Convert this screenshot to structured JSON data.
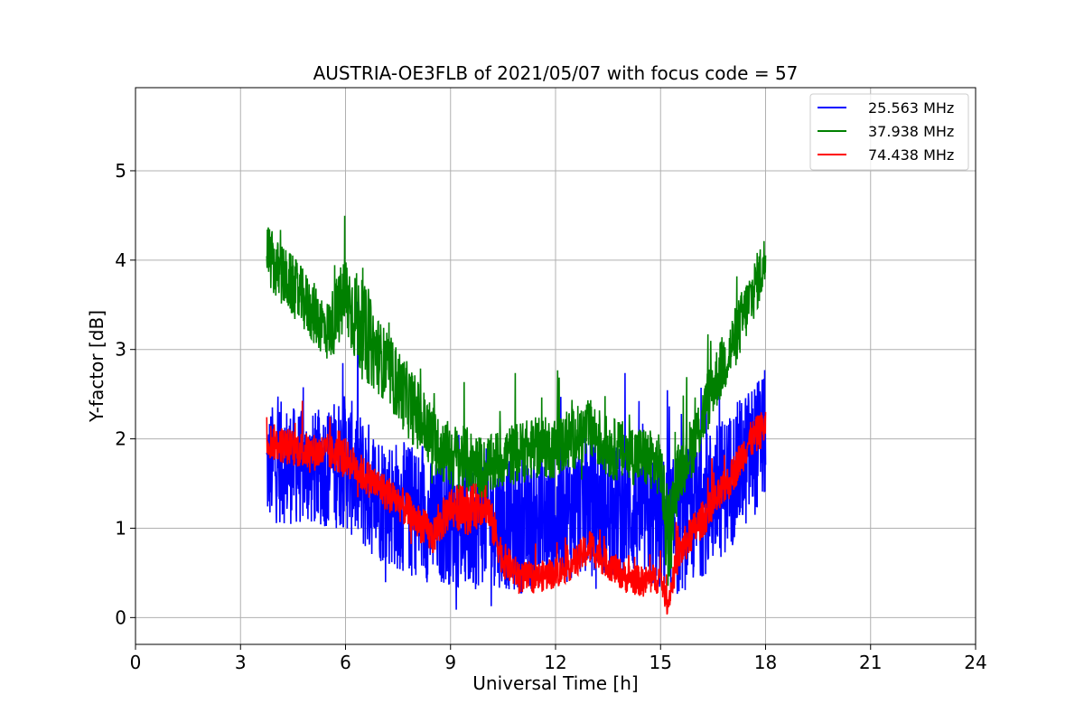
{
  "chart_data": {
    "type": "line",
    "title": "AUSTRIA-OE3FLB of 2021/05/07 with focus code = 57",
    "xlabel": "Universal Time [h]",
    "ylabel": "Y-factor [dB]",
    "xlim": [
      0,
      24
    ],
    "ylim": [
      -0.3,
      5.93
    ],
    "xticks": [
      0,
      3,
      6,
      9,
      12,
      15,
      18,
      21,
      24
    ],
    "yticks": [
      0,
      1,
      2,
      3,
      4,
      5
    ],
    "grid": true,
    "legend_position": "top-right",
    "series": [
      {
        "name": "25.563 MHz",
        "color": "#0000ff",
        "x": [
          3.75,
          4.0,
          4.5,
          5.0,
          5.5,
          6.0,
          6.5,
          7.0,
          7.5,
          8.0,
          8.5,
          9.0,
          9.5,
          10.0,
          10.5,
          11.0,
          11.5,
          12.0,
          12.5,
          13.0,
          13.5,
          14.0,
          14.5,
          15.0,
          15.5,
          16.0,
          16.5,
          17.0,
          17.5,
          18.0
        ],
        "center": [
          1.65,
          1.75,
          1.7,
          1.65,
          1.7,
          1.75,
          1.5,
          1.35,
          1.25,
          1.2,
          1.05,
          1.1,
          1.0,
          1.15,
          1.05,
          1.0,
          1.05,
          1.1,
          1.2,
          1.3,
          1.2,
          1.2,
          1.15,
          1.05,
          1.0,
          1.2,
          1.35,
          1.55,
          1.8,
          2.05
        ],
        "spread": [
          0.9,
          1.0,
          0.95,
          0.9,
          1.0,
          1.1,
          1.1,
          1.05,
          1.05,
          1.05,
          1.0,
          1.05,
          1.05,
          1.1,
          1.05,
          1.05,
          1.05,
          1.1,
          1.1,
          1.1,
          1.05,
          1.05,
          1.05,
          1.1,
          1.1,
          1.15,
          1.15,
          1.1,
          1.1,
          1.05
        ]
      },
      {
        "name": "37.938 MHz",
        "color": "#008000",
        "x": [
          3.75,
          4.0,
          4.5,
          5.0,
          5.5,
          6.0,
          6.5,
          7.0,
          7.5,
          8.0,
          8.5,
          9.0,
          9.5,
          10.0,
          10.5,
          11.0,
          11.5,
          12.0,
          12.5,
          13.0,
          13.5,
          14.0,
          14.5,
          15.0,
          15.2,
          15.5,
          16.0,
          16.5,
          17.0,
          17.5,
          18.0
        ],
        "center": [
          4.1,
          3.9,
          3.7,
          3.45,
          3.2,
          3.6,
          3.2,
          2.9,
          2.6,
          2.3,
          2.0,
          1.8,
          1.75,
          1.65,
          1.8,
          1.85,
          1.9,
          1.9,
          2.0,
          2.1,
          1.9,
          1.85,
          1.8,
          1.7,
          0.8,
          1.6,
          2.0,
          2.6,
          3.0,
          3.5,
          4.0
        ],
        "spread": [
          0.5,
          0.5,
          0.5,
          0.5,
          0.5,
          0.7,
          0.8,
          0.6,
          0.6,
          0.6,
          0.55,
          0.55,
          0.55,
          0.5,
          0.5,
          0.5,
          0.5,
          0.5,
          0.5,
          0.5,
          0.5,
          0.5,
          0.5,
          0.5,
          0.8,
          0.5,
          0.5,
          0.5,
          0.5,
          0.5,
          0.45
        ]
      },
      {
        "name": "74.438 MHz",
        "color": "#ff0000",
        "x": [
          3.75,
          4.0,
          4.5,
          5.0,
          5.5,
          6.0,
          6.5,
          7.0,
          7.5,
          8.0,
          8.5,
          9.0,
          9.5,
          10.0,
          10.5,
          11.0,
          11.5,
          12.0,
          12.5,
          13.0,
          13.5,
          14.0,
          14.5,
          15.0,
          15.2,
          15.5,
          16.0,
          16.5,
          17.0,
          17.5,
          18.0
        ],
        "center": [
          2.0,
          1.95,
          1.9,
          1.85,
          1.85,
          1.8,
          1.6,
          1.45,
          1.3,
          1.1,
          0.9,
          1.25,
          1.2,
          1.3,
          0.65,
          0.45,
          0.45,
          0.5,
          0.6,
          0.8,
          0.6,
          0.45,
          0.4,
          0.45,
          0.15,
          0.7,
          1.0,
          1.25,
          1.55,
          1.95,
          2.15
        ],
        "spread": [
          0.3,
          0.3,
          0.3,
          0.3,
          0.3,
          0.3,
          0.3,
          0.3,
          0.3,
          0.3,
          0.3,
          0.35,
          0.4,
          0.35,
          0.3,
          0.25,
          0.25,
          0.25,
          0.25,
          0.3,
          0.25,
          0.25,
          0.25,
          0.25,
          0.2,
          0.3,
          0.3,
          0.3,
          0.3,
          0.3,
          0.3
        ]
      }
    ]
  }
}
